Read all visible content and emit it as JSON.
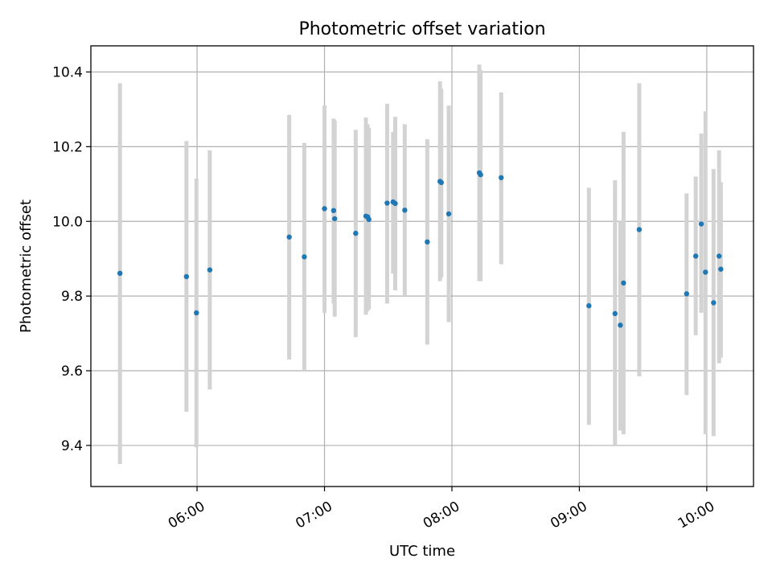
{
  "chart_data": {
    "type": "scatter",
    "title": "Photometric offset variation",
    "xlabel": "UTC time",
    "ylabel": "Photometric offset",
    "grid": true,
    "xlim_minutes": [
      310,
      622
    ],
    "ylim": [
      9.29,
      10.47
    ],
    "x_ticks": [
      {
        "minutes": 360,
        "label": "06:00"
      },
      {
        "minutes": 420,
        "label": "07:00"
      },
      {
        "minutes": 480,
        "label": "08:00"
      },
      {
        "minutes": 540,
        "label": "09:00"
      },
      {
        "minutes": 600,
        "label": "10:00"
      }
    ],
    "y_ticks": [
      {
        "value": 9.4,
        "label": "9.4"
      },
      {
        "value": 9.6,
        "label": "9.6"
      },
      {
        "value": 9.8,
        "label": "9.8"
      },
      {
        "value": 10.0,
        "label": "10.0"
      },
      {
        "value": 10.2,
        "label": "10.2"
      },
      {
        "value": 10.4,
        "label": "10.4"
      }
    ],
    "colors": {
      "point": "#1f77b4",
      "errorbar": "#d3d3d3",
      "grid": "#b0b0b0",
      "axis": "#000000"
    },
    "points": [
      {
        "t": 323.7,
        "y": 9.861,
        "lo": 9.35,
        "hi": 10.37
      },
      {
        "t": 355.0,
        "y": 9.852,
        "lo": 9.49,
        "hi": 10.215
      },
      {
        "t": 359.7,
        "y": 9.755,
        "lo": 9.395,
        "hi": 10.115
      },
      {
        "t": 366.0,
        "y": 9.87,
        "lo": 9.55,
        "hi": 10.19
      },
      {
        "t": 403.4,
        "y": 9.958,
        "lo": 9.63,
        "hi": 10.285
      },
      {
        "t": 410.5,
        "y": 9.905,
        "lo": 9.6,
        "hi": 10.21
      },
      {
        "t": 420.0,
        "y": 10.034,
        "lo": 9.755,
        "hi": 10.31
      },
      {
        "t": 424.3,
        "y": 10.029,
        "lo": 9.78,
        "hi": 10.275
      },
      {
        "t": 424.8,
        "y": 10.007,
        "lo": 9.745,
        "hi": 10.27
      },
      {
        "t": 434.7,
        "y": 9.968,
        "lo": 9.69,
        "hi": 10.245
      },
      {
        "t": 439.5,
        "y": 10.014,
        "lo": 9.75,
        "hi": 10.278
      },
      {
        "t": 440.3,
        "y": 10.012,
        "lo": 9.76,
        "hi": 10.26
      },
      {
        "t": 440.9,
        "y": 10.005,
        "lo": 9.765,
        "hi": 10.25
      },
      {
        "t": 449.5,
        "y": 10.049,
        "lo": 9.78,
        "hi": 10.315
      },
      {
        "t": 452.3,
        "y": 10.052,
        "lo": 9.86,
        "hi": 10.24
      },
      {
        "t": 453.3,
        "y": 10.048,
        "lo": 9.815,
        "hi": 10.28
      },
      {
        "t": 457.8,
        "y": 10.03,
        "lo": 9.8,
        "hi": 10.26
      },
      {
        "t": 468.4,
        "y": 9.945,
        "lo": 9.67,
        "hi": 10.22
      },
      {
        "t": 474.4,
        "y": 10.107,
        "lo": 9.84,
        "hi": 10.375
      },
      {
        "t": 475.0,
        "y": 10.104,
        "lo": 9.85,
        "hi": 10.355
      },
      {
        "t": 478.5,
        "y": 10.02,
        "lo": 9.73,
        "hi": 10.31
      },
      {
        "t": 492.9,
        "y": 10.13,
        "lo": 9.84,
        "hi": 10.42
      },
      {
        "t": 493.5,
        "y": 10.125,
        "lo": 9.84,
        "hi": 10.405
      },
      {
        "t": 503.2,
        "y": 10.117,
        "lo": 9.885,
        "hi": 10.345
      },
      {
        "t": 544.5,
        "y": 9.774,
        "lo": 9.455,
        "hi": 10.09
      },
      {
        "t": 556.8,
        "y": 9.753,
        "lo": 9.4,
        "hi": 10.11
      },
      {
        "t": 559.3,
        "y": 9.722,
        "lo": 9.44,
        "hi": 10.0
      },
      {
        "t": 560.8,
        "y": 9.835,
        "lo": 9.43,
        "hi": 10.24
      },
      {
        "t": 568.2,
        "y": 9.978,
        "lo": 9.585,
        "hi": 10.37
      },
      {
        "t": 590.5,
        "y": 9.806,
        "lo": 9.535,
        "hi": 10.075
      },
      {
        "t": 594.8,
        "y": 9.907,
        "lo": 9.695,
        "hi": 10.12
      },
      {
        "t": 597.4,
        "y": 9.993,
        "lo": 9.755,
        "hi": 10.235
      },
      {
        "t": 599.4,
        "y": 9.864,
        "lo": 9.43,
        "hi": 10.295
      },
      {
        "t": 603.2,
        "y": 9.782,
        "lo": 9.425,
        "hi": 10.14
      },
      {
        "t": 605.8,
        "y": 9.907,
        "lo": 9.62,
        "hi": 10.19
      },
      {
        "t": 606.6,
        "y": 9.872,
        "lo": 9.635,
        "hi": 10.105
      }
    ]
  }
}
